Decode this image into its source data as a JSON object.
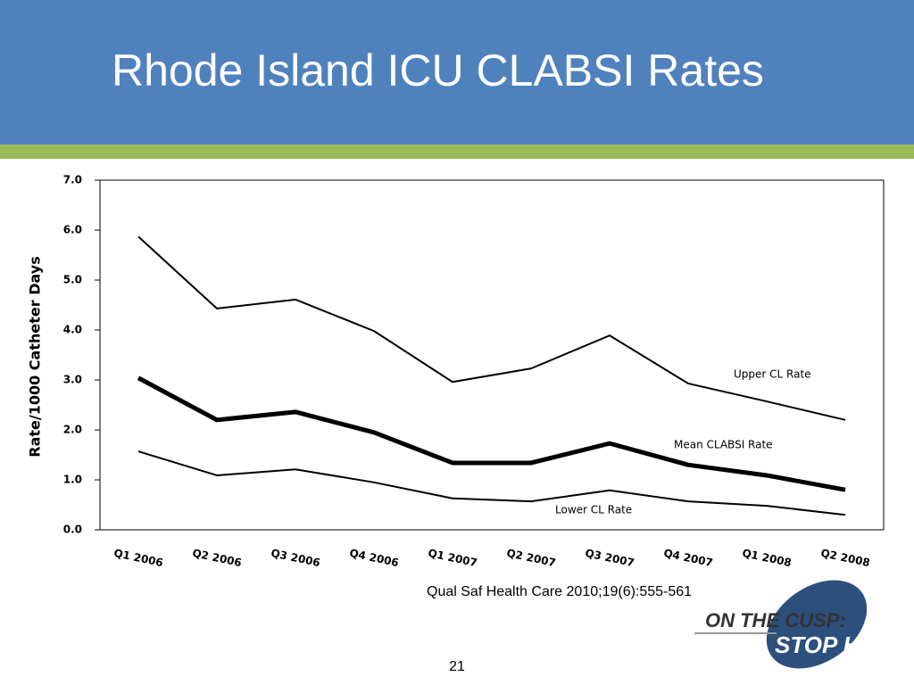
{
  "slide": {
    "title": "Rhode Island ICU CLABSI Rates",
    "citation": "Qual Saf Health Care 2010;19(6):555-561",
    "page_number": "21",
    "logo": {
      "line1": "ON THE CUSP:",
      "line2": "STOP HAI"
    }
  },
  "chart_data": {
    "type": "line",
    "y_label": "Rate/1000 Catheter Days",
    "categories": [
      "Q1 2006",
      "Q2 2006",
      "Q3 2006",
      "Q4 2006",
      "Q1 2007",
      "Q2 2007",
      "Q3 2007",
      "Q4 2007",
      "Q1 2008",
      "Q2 2008"
    ],
    "series": [
      {
        "name": "Upper CL Rate",
        "color": "#000000",
        "line_width": 2,
        "values": [
          5.87,
          4.43,
          4.61,
          3.98,
          2.96,
          3.23,
          3.89,
          2.93,
          2.57,
          2.2
        ]
      },
      {
        "name": "Mean CLABSI Rate",
        "color": "#000000",
        "line_width": 5,
        "values": [
          3.04,
          2.2,
          2.36,
          1.95,
          1.34,
          1.34,
          1.73,
          1.3,
          1.09,
          0.8
        ]
      },
      {
        "name": "Lower CL Rate",
        "color": "#000000",
        "line_width": 2,
        "values": [
          1.57,
          1.09,
          1.21,
          0.95,
          0.63,
          0.57,
          0.79,
          0.57,
          0.48,
          0.3
        ]
      }
    ],
    "ylim": [
      0,
      7
    ],
    "yticks": [
      {
        "value": 0,
        "label": "0.0"
      },
      {
        "value": 1,
        "label": "1.0"
      },
      {
        "value": 2,
        "label": "2.0"
      },
      {
        "value": 3,
        "label": "3.0"
      },
      {
        "value": 4,
        "label": "4.0"
      },
      {
        "value": 5,
        "label": "5.0"
      },
      {
        "value": 6,
        "label": "6.0"
      },
      {
        "value": 7,
        "label": "7.0"
      }
    ],
    "grid": false
  }
}
